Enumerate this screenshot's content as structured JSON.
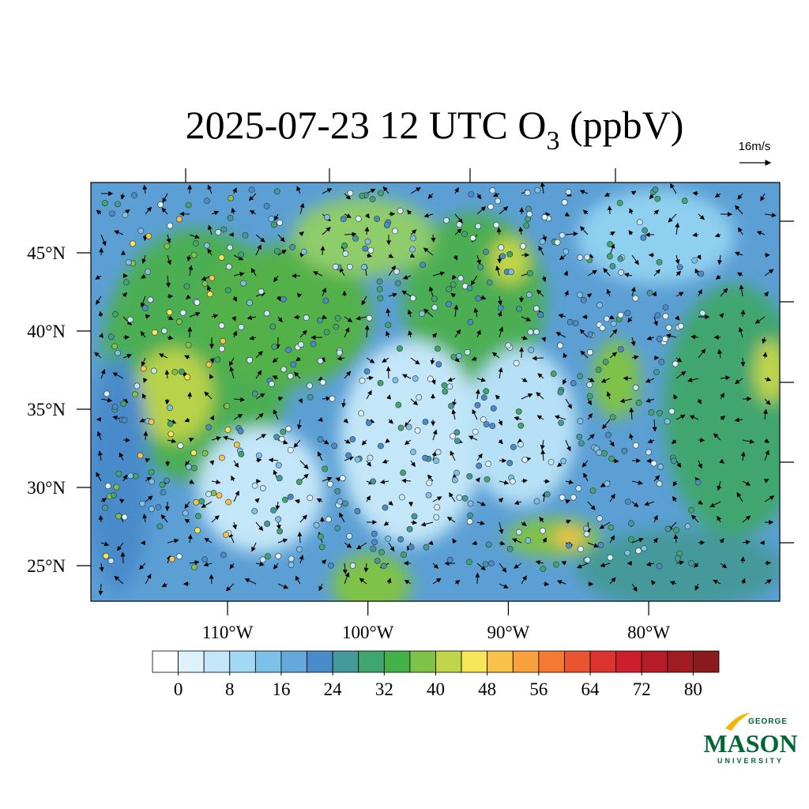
{
  "title": {
    "main": "2025-07-23 12 UTC O",
    "subscript": "3",
    "suffix": " (ppbV)"
  },
  "vector_reference": "16m/s",
  "map": {
    "lat_ticks": [
      {
        "value": 45,
        "label": "45°N"
      },
      {
        "value": 40,
        "label": "40°N"
      },
      {
        "value": 35,
        "label": "35°N"
      },
      {
        "value": 30,
        "label": "30°N"
      },
      {
        "value": 25,
        "label": "25°N"
      }
    ],
    "lon_ticks": [
      {
        "value": -110,
        "label": "110°W"
      },
      {
        "value": -100,
        "label": "100°W"
      },
      {
        "value": -90,
        "label": "90°W"
      },
      {
        "value": -80,
        "label": "80°W"
      }
    ]
  },
  "colorbar": {
    "ticks": [
      0,
      8,
      16,
      24,
      32,
      40,
      48,
      56,
      64,
      72,
      80
    ],
    "colors": [
      "#ffffff",
      "#def2fb",
      "#c3e6f8",
      "#a2d8f4",
      "#7fc0e8",
      "#65a8dc",
      "#4a8bca",
      "#44999a",
      "#3fa66e",
      "#43b04a",
      "#7fc24a",
      "#c1d54a",
      "#f7e65a",
      "#f9c24a",
      "#f9a03f",
      "#f47a32",
      "#ea5430",
      "#dd3430",
      "#cc1f2c",
      "#b51c27",
      "#a11b23",
      "#8b1a1e"
    ]
  },
  "logo": {
    "top": "GEORGE",
    "main": "MASON",
    "bottom": "UNIVERSITY"
  }
}
